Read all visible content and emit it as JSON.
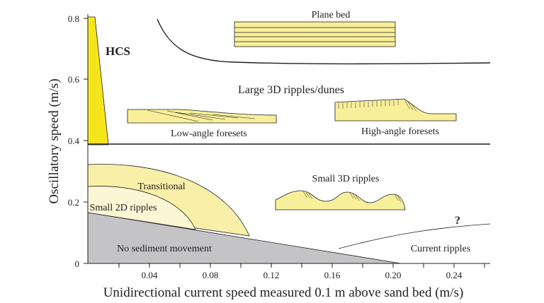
{
  "axes": {
    "x_label": "Unidirectional current speed measured 0.1 m above sand bed (m/s)",
    "y_label": "Oscillatory speed (m/s)",
    "x_ticks": [
      "0.04",
      "0.08",
      "0.12",
      "0.16",
      "0.20",
      "0.24"
    ],
    "y_ticks": [
      "0",
      "0.2",
      "0.4",
      "0.6",
      "0.8"
    ]
  },
  "regions": {
    "hcs": "HCS",
    "plane_bed": "Plane bed",
    "large_ripples": "Large 3D ripples/dunes",
    "low_angle": "Low-angle foresets",
    "high_angle": "High-angle foresets",
    "small_3d": "Small 3D ripples",
    "transitional": "Transitional",
    "small_2d": "Small 2D ripples",
    "no_movement": "No sediment movement",
    "current_ripples": "Current ripples",
    "question": "?"
  },
  "colors": {
    "hcs_fill": "#f7e51c",
    "sketch_fill": "#f8ef9a",
    "transitional_fill": "#f8efa8",
    "small_2d_fill": "#fbf6d4",
    "no_movement_fill": "#c4c4c6",
    "line": "#231f20"
  }
}
